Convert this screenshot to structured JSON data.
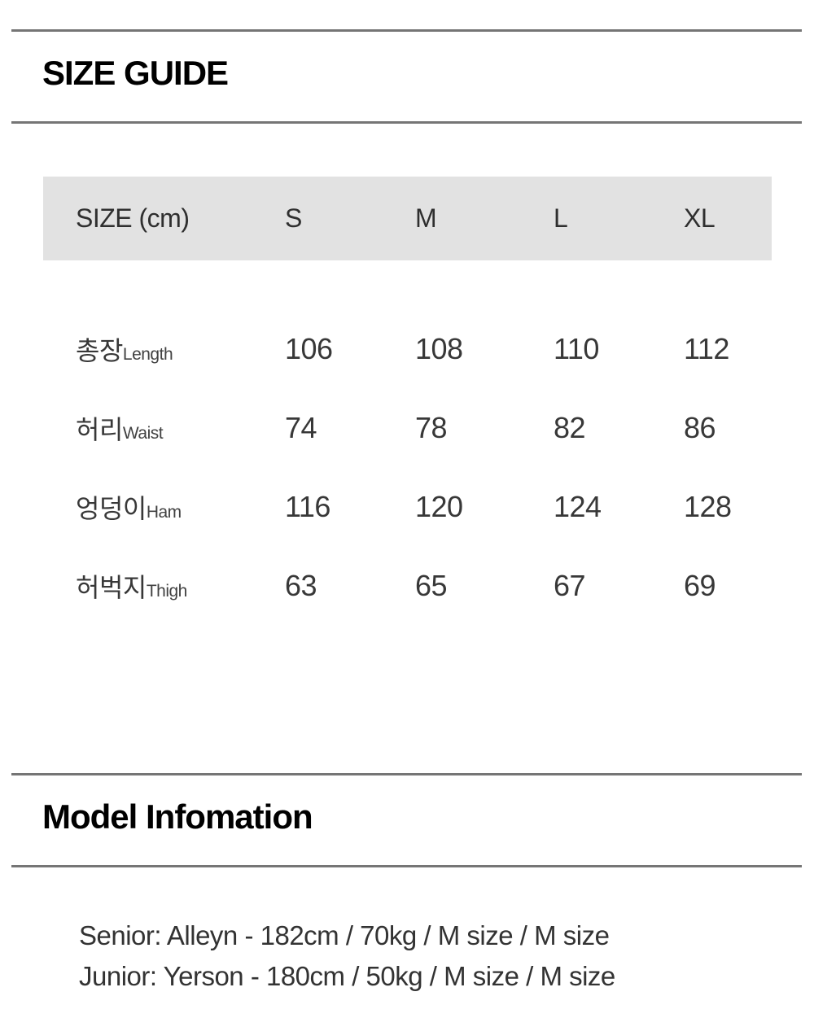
{
  "size_guide": {
    "title": "SIZE GUIDE",
    "table": {
      "unit_header": "SIZE (cm)",
      "size_columns": [
        "S",
        "M",
        "L",
        "XL"
      ],
      "rows": [
        {
          "label_ko": "총장",
          "label_en": "Length",
          "values": [
            "106",
            "108",
            "110",
            "112"
          ]
        },
        {
          "label_ko": "허리",
          "label_en": "Waist",
          "values": [
            "74",
            "78",
            "82",
            "86"
          ]
        },
        {
          "label_ko": "엉덩이",
          "label_en": "Ham",
          "values": [
            "116",
            "120",
            "124",
            "128"
          ]
        },
        {
          "label_ko": "허벅지",
          "label_en": "Thigh",
          "values": [
            "63",
            "65",
            "67",
            "69"
          ]
        }
      ]
    }
  },
  "model_information": {
    "title": "Model Infomation",
    "lines": [
      "Senior: Alleyn - 182cm / 70kg / M size / M size",
      "Junior: Yerson - 180cm / 50kg / M size / M size"
    ]
  },
  "colors": {
    "header_band": "#e2e2e2",
    "rule": "#757575",
    "heading_text": "#000000",
    "body_text": "#333333"
  }
}
